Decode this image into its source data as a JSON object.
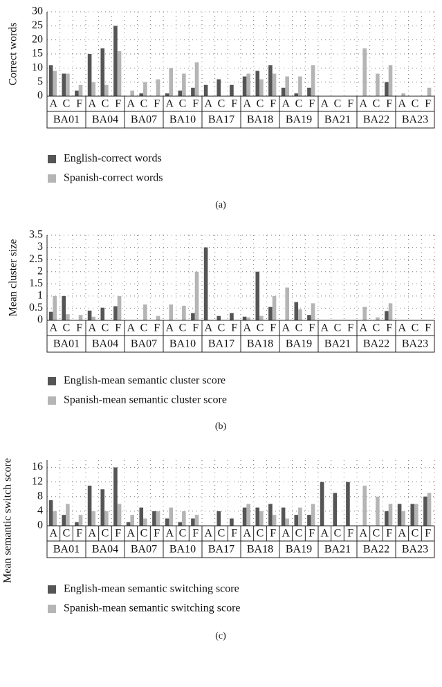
{
  "chart_data": [
    {
      "type": "bar",
      "caption": "(a)",
      "y_label": "Correct words",
      "categories": [
        "A",
        "C",
        "F",
        "A",
        "C",
        "F",
        "A",
        "C",
        "F",
        "A",
        "C",
        "F",
        "A",
        "C",
        "F",
        "A",
        "C",
        "F",
        "A",
        "C",
        "F",
        "A",
        "C",
        "F",
        "A",
        "C",
        "F",
        "A",
        "C",
        "F"
      ],
      "groups": [
        "BA01",
        "BA04",
        "BA07",
        "BA10",
        "BA17",
        "BA18",
        "BA19",
        "BA21",
        "BA22",
        "BA23"
      ],
      "ylim": [
        0,
        30
      ],
      "yticks": [
        0,
        5,
        10,
        15,
        20,
        25,
        30
      ],
      "grid": true,
      "series": [
        {
          "name": "English-correct words",
          "color": "#555555",
          "values": [
            11,
            8,
            2,
            15,
            17,
            25,
            0,
            1,
            0,
            1,
            2,
            3,
            4,
            6,
            4,
            7,
            9,
            11,
            3,
            1,
            3,
            0,
            0,
            0,
            0,
            0,
            5,
            0,
            0,
            0
          ]
        },
        {
          "name": "Spanish-correct words",
          "color": "#b5b5b5",
          "values": [
            9,
            8,
            4,
            5,
            4,
            16,
            2,
            5,
            6,
            10,
            8,
            12,
            0,
            0,
            0,
            8,
            6,
            8,
            7,
            7,
            11,
            0,
            0,
            0,
            17,
            8,
            11,
            1,
            0,
            3
          ]
        }
      ]
    },
    {
      "type": "bar",
      "caption": "(b)",
      "y_label": "Mean cluster size",
      "categories": [
        "A",
        "C",
        "F",
        "A",
        "C",
        "F",
        "A",
        "C",
        "F",
        "A",
        "C",
        "F",
        "A",
        "C",
        "F",
        "A",
        "C",
        "F",
        "A",
        "C",
        "F",
        "A",
        "C",
        "F",
        "A",
        "C",
        "F",
        "A",
        "C",
        "F"
      ],
      "groups": [
        "BA01",
        "BA04",
        "BA07",
        "BA10",
        "BA17",
        "BA18",
        "BA19",
        "BA21",
        "BA22",
        "BA23"
      ],
      "ylim": [
        0,
        3.5
      ],
      "yticks": [
        0,
        0.5,
        1,
        1.5,
        2,
        2.5,
        3,
        3.5
      ],
      "grid": true,
      "series": [
        {
          "name": "English-mean semantic cluster score",
          "color": "#555555",
          "values": [
            0.35,
            1.0,
            0,
            0.4,
            0.52,
            0.58,
            0,
            0,
            0,
            0,
            0,
            0.3,
            3.0,
            0.18,
            0.3,
            0.15,
            2.0,
            0.55,
            0,
            0.75,
            0.22,
            0,
            0,
            0,
            0,
            0,
            0.38,
            0,
            0,
            0
          ]
        },
        {
          "name": "Spanish-mean semantic cluster score",
          "color": "#b5b5b5",
          "values": [
            1.0,
            0.25,
            0.22,
            0.15,
            0,
            1.0,
            0,
            0.65,
            0.18,
            0.65,
            0.6,
            2.0,
            0,
            0,
            0,
            0.12,
            0.18,
            1.0,
            1.35,
            0.45,
            0.7,
            0,
            0,
            0,
            0.55,
            0.12,
            0.7,
            0,
            0,
            0
          ]
        }
      ]
    },
    {
      "type": "bar",
      "caption": "(c)",
      "y_label": "Mean semantic switch score",
      "categories": [
        "A",
        "C",
        "F",
        "A",
        "C",
        "F",
        "A",
        "C",
        "F",
        "A",
        "C",
        "F",
        "A",
        "C",
        "F",
        "A",
        "C",
        "F",
        "A",
        "C",
        "F",
        "A",
        "C",
        "F",
        "A",
        "C",
        "F",
        "A",
        "C",
        "F"
      ],
      "groups": [
        "BA01",
        "BA04",
        "BA07",
        "BA10",
        "BA17",
        "BA18",
        "BA19",
        "BA21",
        "BA22",
        "BA23"
      ],
      "ylim": [
        0,
        18
      ],
      "yticks": [
        0,
        4,
        8,
        12,
        16
      ],
      "grid": true,
      "series": [
        {
          "name": "English-mean semantic switching score",
          "color": "#555555",
          "values": [
            7,
            3,
            1,
            11,
            10,
            16,
            1,
            5,
            4,
            2,
            1,
            2,
            0,
            4,
            2,
            5,
            5,
            6,
            5,
            3,
            3,
            12,
            9,
            12,
            0,
            0,
            4,
            6,
            6,
            8
          ]
        },
        {
          "name": "Spanish-mean semantic switching score",
          "color": "#b5b5b5",
          "values": [
            4,
            6,
            3,
            4,
            4,
            6,
            3,
            2,
            4,
            5,
            4,
            3,
            0,
            0,
            0,
            6,
            4,
            3,
            2,
            5,
            6,
            0,
            0,
            0,
            11,
            8,
            6,
            4,
            6,
            9
          ]
        }
      ]
    }
  ]
}
